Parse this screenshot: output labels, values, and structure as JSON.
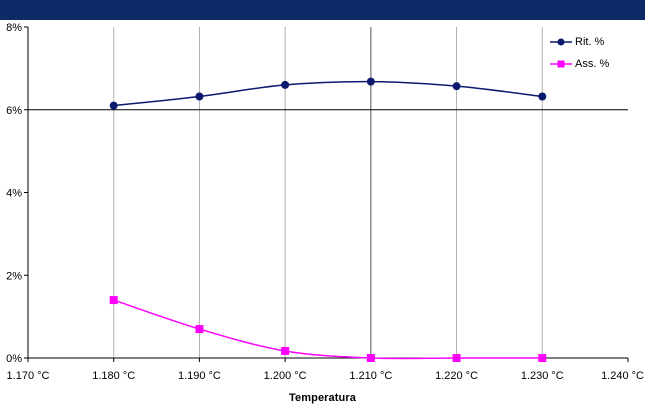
{
  "chart_data": {
    "type": "line",
    "xlabel": "Temperatura",
    "ylabel": "",
    "x": [
      1180,
      1190,
      1200,
      1210,
      1220,
      1230
    ],
    "xlim": [
      1170,
      1240
    ],
    "x_ticks": [
      1170,
      1180,
      1190,
      1200,
      1210,
      1220,
      1230,
      1240
    ],
    "x_tick_labels": [
      "1.170 °C",
      "1.180 °C",
      "1.190 °C",
      "1.200 °C",
      "1.210 °C",
      "1.220 °C",
      "1.230 °C",
      "1.240 °C"
    ],
    "ylim": [
      0,
      8
    ],
    "y_ticks": [
      0,
      2,
      4,
      6,
      8
    ],
    "y_tick_labels": [
      "0%",
      "2%",
      "4%",
      "6%",
      "8%"
    ],
    "grid": "vertical",
    "legend_position": "top-right",
    "series": [
      {
        "name": "Rit. %",
        "values": [
          6.1,
          6.32,
          6.6,
          6.68,
          6.57,
          6.32
        ],
        "color": "#0b1a6e",
        "marker": "circle"
      },
      {
        "name": "Ass. %",
        "values": [
          1.4,
          0.7,
          0.17,
          0.0,
          0.0,
          0.0
        ],
        "color": "#ff00ff",
        "marker": "square"
      }
    ]
  }
}
